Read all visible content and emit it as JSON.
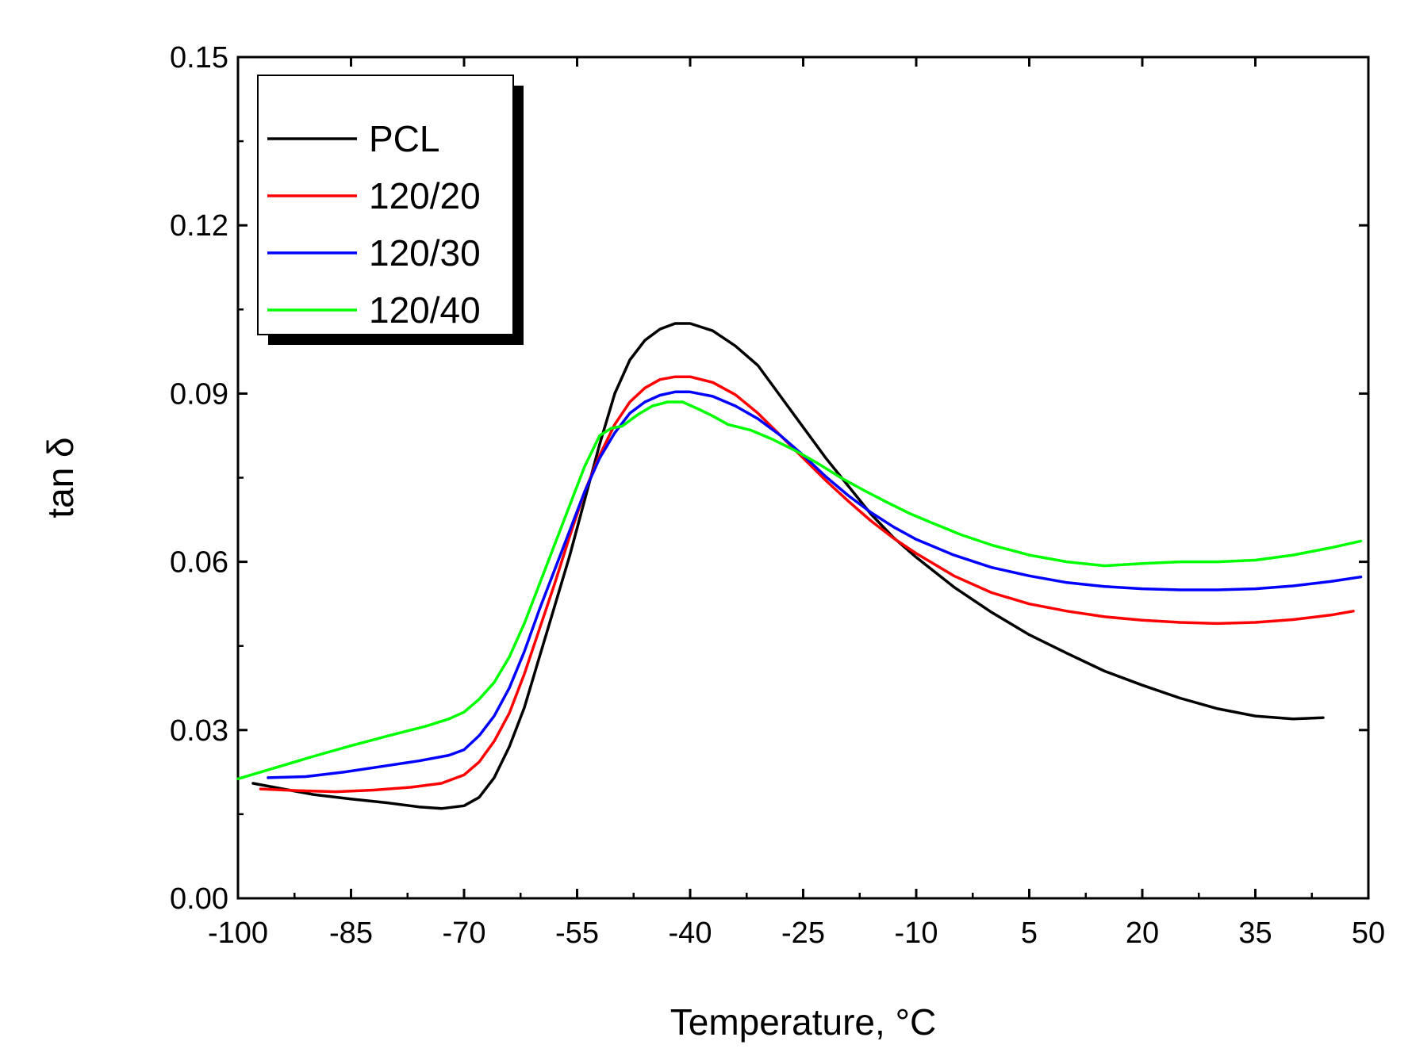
{
  "chart_data": {
    "type": "line",
    "xlabel": "Temperature, °C",
    "ylabel": "tan δ",
    "xlim": [
      -100,
      50
    ],
    "ylim": [
      0,
      0.15
    ],
    "xticks": [
      "-100",
      "-85",
      "-70",
      "-55",
      "-40",
      "-25",
      "-10",
      "5",
      "20",
      "35",
      "50"
    ],
    "yticks": [
      "0.00",
      "0.03",
      "0.06",
      "0.09",
      "0.12",
      "0.15"
    ],
    "grid": false,
    "legend_position": "top-left",
    "series": [
      {
        "name": "PCL",
        "color": "#000000",
        "points": [
          [
            -98,
            0.0205
          ],
          [
            -94,
            0.0195
          ],
          [
            -90,
            0.0185
          ],
          [
            -85,
            0.0177
          ],
          [
            -80,
            0.017
          ],
          [
            -76,
            0.0163
          ],
          [
            -73,
            0.016
          ],
          [
            -70,
            0.0165
          ],
          [
            -68,
            0.018
          ],
          [
            -66,
            0.0215
          ],
          [
            -64,
            0.027
          ],
          [
            -62,
            0.034
          ],
          [
            -60,
            0.043
          ],
          [
            -58,
            0.052
          ],
          [
            -56,
            0.061
          ],
          [
            -54,
            0.071
          ],
          [
            -52,
            0.081
          ],
          [
            -50,
            0.09
          ],
          [
            -48,
            0.096
          ],
          [
            -46,
            0.0995
          ],
          [
            -44,
            0.1015
          ],
          [
            -42,
            0.1025
          ],
          [
            -40,
            0.1025
          ],
          [
            -37,
            0.1012
          ],
          [
            -34,
            0.0985
          ],
          [
            -31,
            0.095
          ],
          [
            -28,
            0.0895
          ],
          [
            -25,
            0.084
          ],
          [
            -22,
            0.0785
          ],
          [
            -19,
            0.0735
          ],
          [
            -16,
            0.0685
          ],
          [
            -13,
            0.0643
          ],
          [
            -10,
            0.0608
          ],
          [
            -5,
            0.0555
          ],
          [
            0,
            0.051
          ],
          [
            5,
            0.047
          ],
          [
            10,
            0.0437
          ],
          [
            15,
            0.0405
          ],
          [
            20,
            0.038
          ],
          [
            25,
            0.0357
          ],
          [
            30,
            0.0338
          ],
          [
            35,
            0.0325
          ],
          [
            40,
            0.032
          ],
          [
            44,
            0.0322
          ]
        ]
      },
      {
        "name": "120/20",
        "color": "#ff0000",
        "points": [
          [
            -97,
            0.0195
          ],
          [
            -92,
            0.0192
          ],
          [
            -87,
            0.019
          ],
          [
            -82,
            0.0193
          ],
          [
            -77,
            0.0198
          ],
          [
            -73,
            0.0205
          ],
          [
            -70,
            0.022
          ],
          [
            -68,
            0.0243
          ],
          [
            -66,
            0.028
          ],
          [
            -64,
            0.033
          ],
          [
            -62,
            0.04
          ],
          [
            -60,
            0.048
          ],
          [
            -58,
            0.056
          ],
          [
            -56,
            0.0645
          ],
          [
            -54,
            0.0725
          ],
          [
            -52,
            0.079
          ],
          [
            -50,
            0.0845
          ],
          [
            -48,
            0.0885
          ],
          [
            -46,
            0.091
          ],
          [
            -44,
            0.0925
          ],
          [
            -42,
            0.093
          ],
          [
            -40,
            0.093
          ],
          [
            -37,
            0.092
          ],
          [
            -34,
            0.0898
          ],
          [
            -31,
            0.0865
          ],
          [
            -28,
            0.0825
          ],
          [
            -25,
            0.0785
          ],
          [
            -22,
            0.0745
          ],
          [
            -19,
            0.0708
          ],
          [
            -16,
            0.0673
          ],
          [
            -13,
            0.0642
          ],
          [
            -10,
            0.0615
          ],
          [
            -5,
            0.0575
          ],
          [
            0,
            0.0545
          ],
          [
            5,
            0.0525
          ],
          [
            10,
            0.0512
          ],
          [
            15,
            0.0502
          ],
          [
            20,
            0.0496
          ],
          [
            25,
            0.0492
          ],
          [
            30,
            0.049
          ],
          [
            35,
            0.0492
          ],
          [
            40,
            0.0497
          ],
          [
            45,
            0.0505
          ],
          [
            48,
            0.0512
          ]
        ]
      },
      {
        "name": "120/30",
        "color": "#0000ff",
        "points": [
          [
            -96,
            0.0215
          ],
          [
            -91,
            0.0217
          ],
          [
            -86,
            0.0225
          ],
          [
            -81,
            0.0235
          ],
          [
            -76,
            0.0245
          ],
          [
            -72,
            0.0255
          ],
          [
            -70,
            0.0265
          ],
          [
            -68,
            0.029
          ],
          [
            -66,
            0.0325
          ],
          [
            -64,
            0.0375
          ],
          [
            -62,
            0.044
          ],
          [
            -60,
            0.0515
          ],
          [
            -58,
            0.0585
          ],
          [
            -56,
            0.0655
          ],
          [
            -54,
            0.0725
          ],
          [
            -52,
            0.0785
          ],
          [
            -50,
            0.083
          ],
          [
            -48,
            0.0865
          ],
          [
            -46,
            0.0885
          ],
          [
            -44,
            0.0897
          ],
          [
            -42,
            0.0903
          ],
          [
            -40,
            0.0903
          ],
          [
            -37,
            0.0895
          ],
          [
            -34,
            0.0878
          ],
          [
            -31,
            0.0855
          ],
          [
            -28,
            0.0825
          ],
          [
            -25,
            0.079
          ],
          [
            -22,
            0.0752
          ],
          [
            -19,
            0.0718
          ],
          [
            -16,
            0.0688
          ],
          [
            -13,
            0.0662
          ],
          [
            -10,
            0.064
          ],
          [
            -5,
            0.0612
          ],
          [
            0,
            0.059
          ],
          [
            5,
            0.0575
          ],
          [
            10,
            0.0563
          ],
          [
            15,
            0.0556
          ],
          [
            20,
            0.0552
          ],
          [
            25,
            0.055
          ],
          [
            30,
            0.055
          ],
          [
            35,
            0.0552
          ],
          [
            40,
            0.0557
          ],
          [
            45,
            0.0565
          ],
          [
            49,
            0.0573
          ]
        ]
      },
      {
        "name": "120/40",
        "color": "#00ff00",
        "points": [
          [
            -100,
            0.0213
          ],
          [
            -95,
            0.0233
          ],
          [
            -90,
            0.0253
          ],
          [
            -85,
            0.0272
          ],
          [
            -80,
            0.029
          ],
          [
            -75,
            0.0307
          ],
          [
            -72,
            0.032
          ],
          [
            -70,
            0.0332
          ],
          [
            -68,
            0.0355
          ],
          [
            -66,
            0.0385
          ],
          [
            -64,
            0.043
          ],
          [
            -62,
            0.049
          ],
          [
            -60,
            0.056
          ],
          [
            -58,
            0.063
          ],
          [
            -56,
            0.07
          ],
          [
            -54,
            0.077
          ],
          [
            -52,
            0.0825
          ],
          [
            -50.5,
            0.0838
          ],
          [
            -49,
            0.0842
          ],
          [
            -47,
            0.0862
          ],
          [
            -45,
            0.0878
          ],
          [
            -43,
            0.0885
          ],
          [
            -41,
            0.0885
          ],
          [
            -39,
            0.0873
          ],
          [
            -37,
            0.086
          ],
          [
            -35,
            0.0845
          ],
          [
            -32,
            0.0835
          ],
          [
            -29,
            0.0818
          ],
          [
            -26,
            0.0798
          ],
          [
            -23,
            0.0775
          ],
          [
            -20,
            0.075
          ],
          [
            -17,
            0.0728
          ],
          [
            -14,
            0.0707
          ],
          [
            -11,
            0.0687
          ],
          [
            -8,
            0.067
          ],
          [
            -4,
            0.0648
          ],
          [
            0,
            0.063
          ],
          [
            5,
            0.0612
          ],
          [
            10,
            0.06
          ],
          [
            15,
            0.0593
          ],
          [
            20,
            0.0597
          ],
          [
            25,
            0.06
          ],
          [
            30,
            0.06
          ],
          [
            35,
            0.0603
          ],
          [
            40,
            0.0612
          ],
          [
            45,
            0.0625
          ],
          [
            49,
            0.0637
          ]
        ]
      }
    ]
  }
}
